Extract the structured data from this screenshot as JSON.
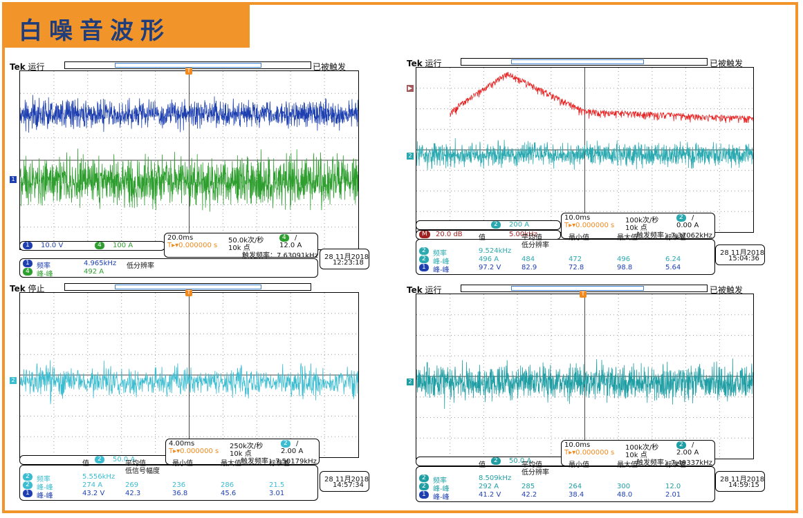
{
  "title": "白噪音波形",
  "colors": {
    "accent": "#f1952b",
    "title_text": "#1f3d7a",
    "ch1": "#1d3fb0",
    "ch2": "#3bbcd0",
    "ch4": "#2e9e2e",
    "math": "#e82020",
    "trigger": "#f08a1e"
  },
  "panels": [
    {
      "brand": "Tek",
      "status": "运行",
      "trigger_state": "已被触发",
      "traces": [
        {
          "channel": "1",
          "color": "#1d3fb0"
        },
        {
          "channel": "4",
          "color": "#2e9e2e"
        }
      ],
      "scale_row": [
        {
          "channel": "1",
          "value": "10.0 V"
        },
        {
          "channel": "4",
          "value": "100 A"
        }
      ],
      "timebase": "20.0ms",
      "sample_rate": "50.0k次/秒",
      "trig_ch": "4",
      "trig_slope": "/",
      "trig_pos": "T▸▾0.000000 s",
      "points": "10k 点",
      "trig_level": "12.0 A",
      "trig_freq": "触发频率：7.63091kHz",
      "date": "28 11月2018",
      "time": "12:23:18",
      "measurements": [
        {
          "ch": "1",
          "name": "频率",
          "value": "4.965kHz",
          "extra": "低分辨率"
        },
        {
          "ch": "4",
          "name": "峰-峰",
          "value": "492 A",
          "extra": ""
        }
      ]
    },
    {
      "brand": "Tek",
      "status": "运行",
      "trigger_state": "已被触发",
      "traces": [
        {
          "channel": "M",
          "color": "#e82020"
        },
        {
          "channel": "2",
          "color": "#2aaab0"
        }
      ],
      "scale_row": [
        {
          "channel": "2",
          "value": "200 A"
        }
      ],
      "math_row": {
        "label": "M",
        "value": "20.0 dB",
        "freq": "5.00kHz"
      },
      "timebase": "10.0ms",
      "sample_rate": "100k次/秒",
      "trig_ch": "2",
      "trig_slope": "/",
      "trig_pos": "T▸▾0.000000 s",
      "points": "10k 点",
      "trig_level": "0.00 A",
      "trig_freq": "触发频率：7.37062kHz",
      "date": "28 11月2018",
      "time": "15:04:36",
      "meas_headers": [
        "值",
        "平均值",
        "最小值",
        "最大值",
        "标准差"
      ],
      "meas_sub": "低分辨率",
      "measurements": [
        {
          "ch": "2",
          "name": "频率",
          "values": [
            "9.524kHz",
            "",
            "",
            "",
            ""
          ]
        },
        {
          "ch": "2",
          "name": "峰-峰",
          "values": [
            "496 A",
            "484",
            "472",
            "496",
            "6.24"
          ]
        },
        {
          "ch": "1",
          "name": "峰-峰",
          "values": [
            "97.2 V",
            "82.9",
            "72.8",
            "98.8",
            "5.64"
          ]
        }
      ]
    },
    {
      "brand": "Tek",
      "status": "停止",
      "trigger_state": "",
      "traces": [
        {
          "channel": "2",
          "color": "#3bbcd0"
        }
      ],
      "scale_row": [
        {
          "channel": "2",
          "value": "50.0 A"
        }
      ],
      "timebase": "4.00ms",
      "sample_rate": "250k次/秒",
      "trig_ch": "2",
      "trig_slope": "/",
      "trig_pos": "T▸▾0.000000 s",
      "points": "10k 点",
      "trig_level": "2.00 A",
      "trig_freq": "触发频率：7.50179kHz",
      "date": "28 11月2018",
      "time": "14:57:34",
      "meas_headers": [
        "值",
        "平均值",
        "最小值",
        "最大值",
        "标准差"
      ],
      "meas_sub": "低信号幅度",
      "measurements": [
        {
          "ch": "2",
          "name": "频率",
          "values": [
            "5.556kHz",
            "",
            "",
            "",
            ""
          ]
        },
        {
          "ch": "2",
          "name": "峰-峰",
          "values": [
            "274 A",
            "269",
            "236",
            "286",
            "21.5"
          ]
        },
        {
          "ch": "1",
          "name": "峰-峰",
          "values": [
            "43.2 V",
            "42.3",
            "36.8",
            "45.6",
            "3.01"
          ]
        }
      ]
    },
    {
      "brand": "Tek",
      "status": "运行",
      "trigger_state": "已被触发",
      "traces": [
        {
          "channel": "2",
          "color": "#1f9ea4"
        }
      ],
      "scale_row": [
        {
          "channel": "2",
          "value": "50.0 A"
        }
      ],
      "timebase": "10.0ms",
      "sample_rate": "100k次/秒",
      "trig_ch": "2",
      "trig_slope": "/",
      "trig_pos": "T▸▾0.000000 s",
      "points": "10k 点",
      "trig_level": "2.00 A",
      "trig_freq": "触发频率：7.49337kHz",
      "date": "28 11月2018",
      "time": "14:59:15",
      "meas_headers": [
        "值",
        "平均值",
        "最小值",
        "最大值",
        "标准差"
      ],
      "meas_sub": "低分辨率",
      "measurements": [
        {
          "ch": "2",
          "name": "频率",
          "values": [
            "8.509kHz",
            "",
            "",
            "",
            ""
          ]
        },
        {
          "ch": "2",
          "name": "峰-峰",
          "values": [
            "292 A",
            "285",
            "264",
            "300",
            "12.0"
          ]
        },
        {
          "ch": "1",
          "name": "峰-峰",
          "values": [
            "41.2 V",
            "42.2",
            "38.4",
            "48.0",
            "2.01"
          ]
        }
      ]
    }
  ]
}
